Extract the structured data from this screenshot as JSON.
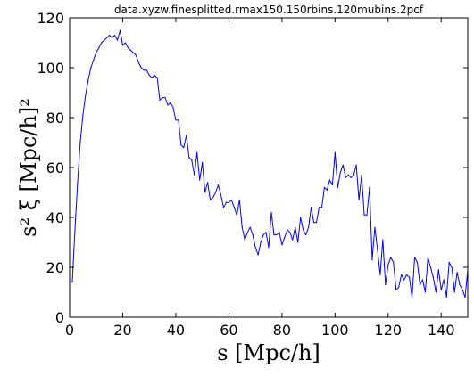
{
  "chart_data": {
    "type": "line",
    "title": "data.xyzw.finesplitted.rmax150.150rbins.120mubins.2pcf",
    "xlabel": "s [Mpc/h]",
    "ylabel": "s² ξ [Mpc/h]²",
    "xlim": [
      0,
      150
    ],
    "ylim": [
      0,
      120
    ],
    "xticks": [
      0,
      20,
      40,
      60,
      80,
      100,
      120,
      140
    ],
    "yticks": [
      0,
      20,
      40,
      60,
      80,
      100,
      120
    ],
    "grid": false,
    "line_color": "#0000ff",
    "series": [
      {
        "x": [
          1,
          2,
          3,
          4,
          5,
          6,
          7,
          8,
          9,
          10,
          11,
          12,
          13,
          14,
          15,
          16,
          17,
          18,
          19,
          20,
          21,
          22,
          23,
          24,
          25,
          26,
          27,
          28,
          29,
          30,
          31,
          32,
          33,
          34,
          35,
          36,
          37,
          38,
          39,
          40,
          41,
          42,
          43,
          44,
          45,
          46,
          47,
          48,
          49,
          50,
          51,
          52,
          53,
          54,
          55,
          56,
          57,
          58,
          59,
          60,
          61,
          62,
          63,
          64,
          65,
          66,
          67,
          68,
          69,
          70,
          71,
          72,
          73,
          74,
          75,
          76,
          77,
          78,
          79,
          80,
          81,
          82,
          83,
          84,
          85,
          86,
          87,
          88,
          89,
          90,
          91,
          92,
          93,
          94,
          95,
          96,
          97,
          98,
          99,
          100,
          101,
          102,
          103,
          104,
          105,
          106,
          107,
          108,
          109,
          110,
          111,
          112,
          113,
          114,
          115,
          116,
          117,
          118,
          119,
          120,
          121,
          122,
          123,
          124,
          125,
          126,
          127,
          128,
          129,
          130,
          131,
          132,
          133,
          134,
          135,
          136,
          137,
          138,
          139,
          140,
          141,
          142,
          143,
          144,
          145,
          146,
          147,
          148,
          149,
          150
        ],
        "values": [
          14,
          35,
          54,
          70,
          81,
          89,
          95,
          100,
          103,
          106,
          108,
          110,
          111,
          112,
          113,
          112,
          113,
          111,
          115,
          109,
          110,
          108,
          107,
          106,
          105,
          102,
          100,
          99,
          99,
          97,
          96,
          97,
          96,
          87,
          88,
          88,
          85,
          86,
          84,
          79,
          79,
          69,
          68,
          73,
          64,
          63,
          57,
          66,
          55,
          62,
          50,
          54,
          47,
          48,
          50,
          53,
          49,
          44,
          46,
          46,
          47,
          44,
          41,
          47,
          36,
          31,
          34,
          36,
          33,
          28,
          25,
          30,
          33,
          34,
          28,
          42,
          33,
          33,
          34,
          29,
          32,
          35,
          34,
          31,
          36,
          30,
          40,
          35,
          33,
          36,
          44,
          38,
          38,
          44,
          44,
          52,
          51,
          55,
          53,
          66,
          52,
          58,
          61,
          56,
          57,
          56,
          57,
          61,
          47,
          57,
          41,
          41,
          52,
          23,
          36,
          27,
          17,
          31,
          13,
          21,
          24,
          22,
          11,
          12,
          17,
          15,
          17,
          16,
          8,
          24,
          22,
          13,
          15,
          10,
          24,
          20,
          16,
          10,
          19,
          11,
          15,
          8,
          22,
          20,
          10,
          18,
          13,
          11,
          8,
          19
        ]
      }
    ]
  }
}
